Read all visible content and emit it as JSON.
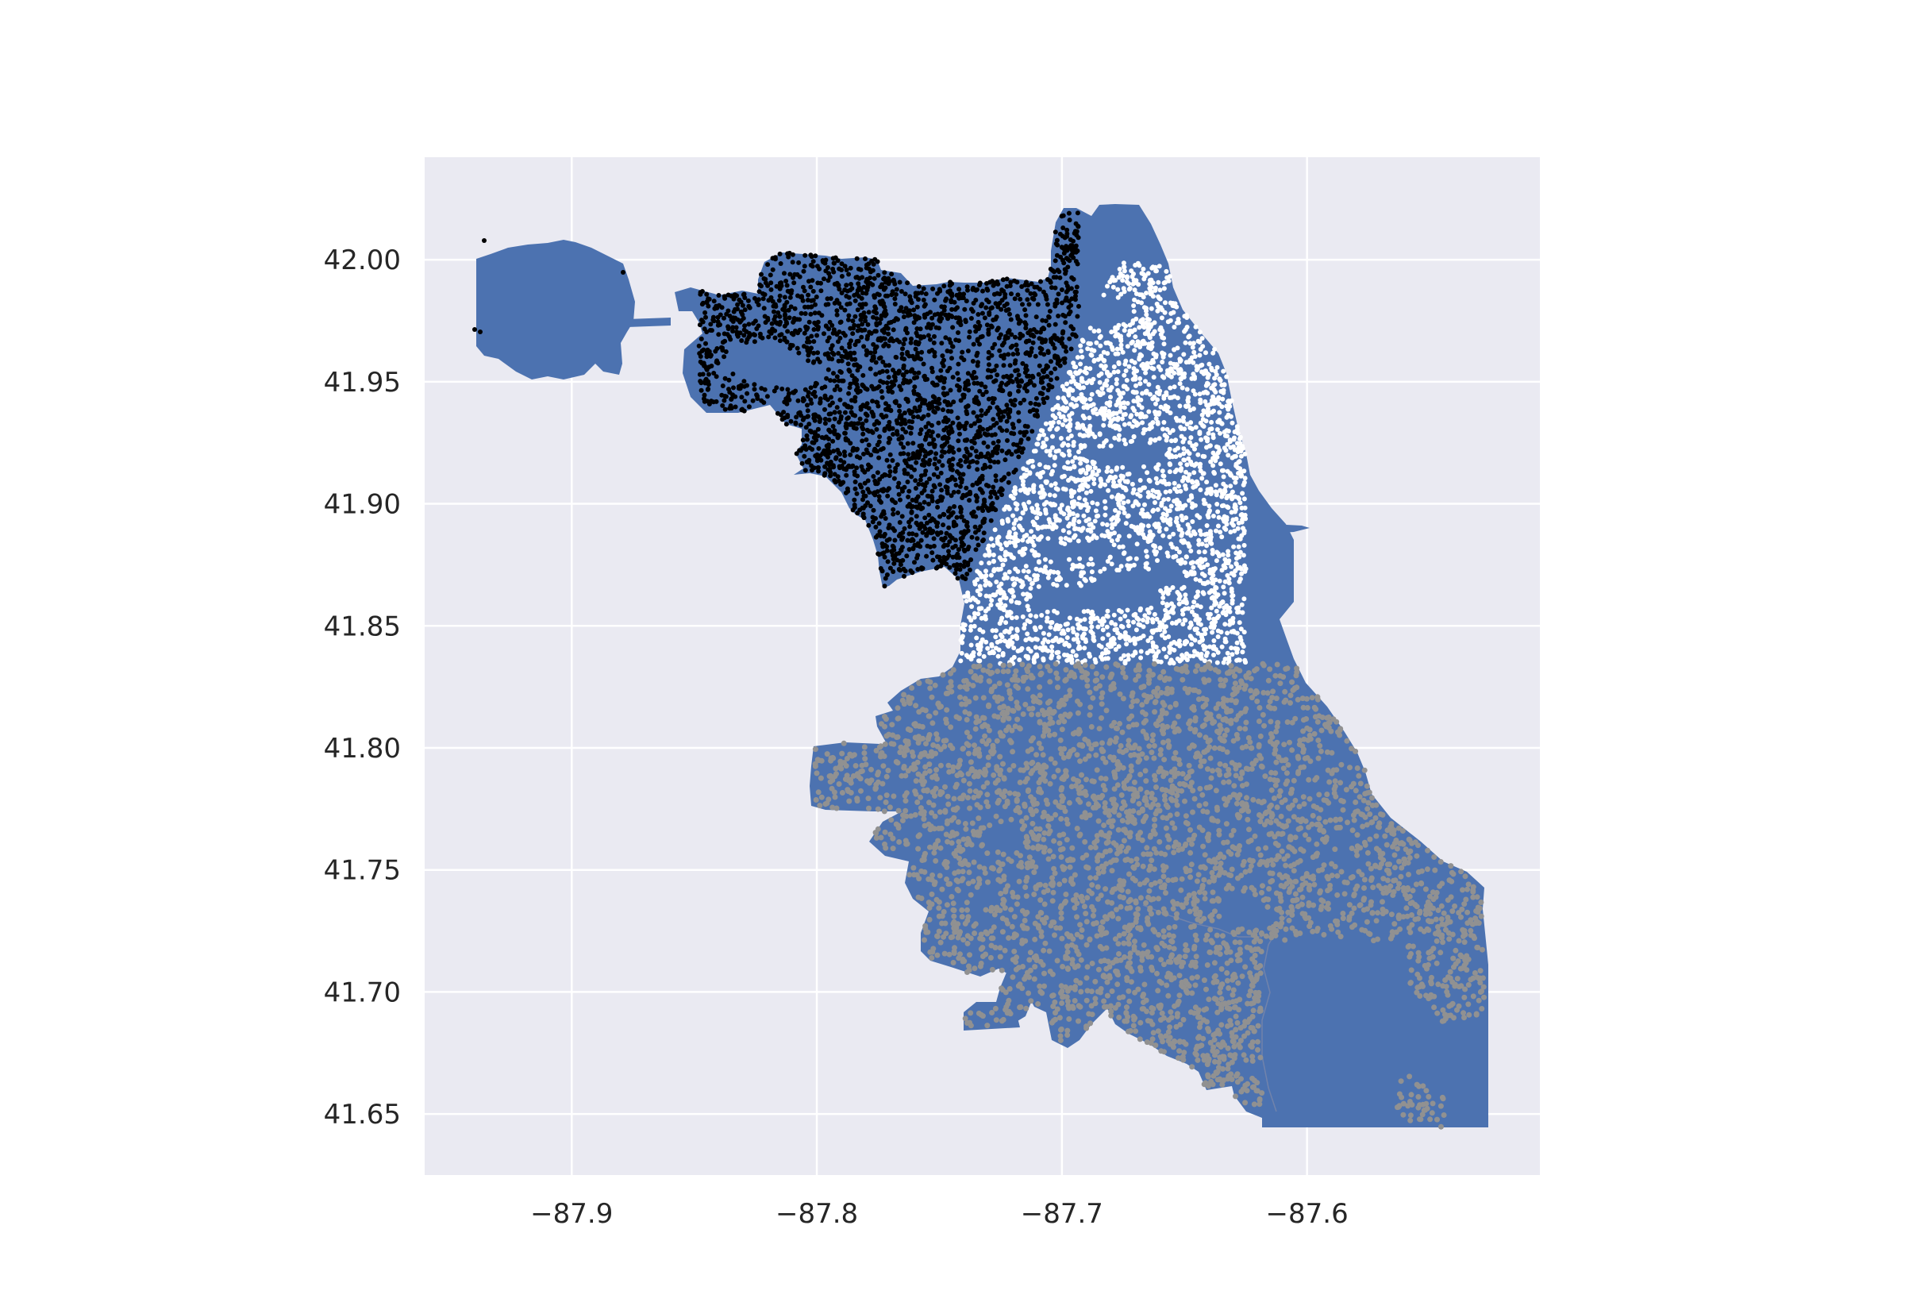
{
  "chart_data": {
    "type": "scatter",
    "title": "",
    "xlabel": "",
    "ylabel": "",
    "xlim": [
      -87.96,
      -87.505
    ],
    "ylim": [
      41.625,
      42.042
    ],
    "grid": true,
    "x_ticks": [
      -87.9,
      -87.8,
      -87.7,
      -87.6
    ],
    "x_tick_labels": [
      "−87.9",
      "−87.8",
      "−87.7",
      "−87.6"
    ],
    "y_ticks": [
      41.65,
      41.7,
      41.75,
      41.8,
      41.85,
      41.9,
      41.95,
      42.0
    ],
    "y_tick_labels": [
      "41.65",
      "41.70",
      "41.75",
      "41.80",
      "41.85",
      "41.90",
      "41.95",
      "42.00"
    ],
    "background_color": "#eaeaf2",
    "grid_color": "#ffffff",
    "layers": [
      {
        "kind": "polygons",
        "color": "#4c72b0"
      },
      {
        "kind": "points",
        "color": "#000000",
        "region": "northwest"
      },
      {
        "kind": "points",
        "color": "#ffffff",
        "region": "north-central"
      },
      {
        "kind": "points",
        "color": "#919191",
        "region": "south"
      }
    ]
  }
}
